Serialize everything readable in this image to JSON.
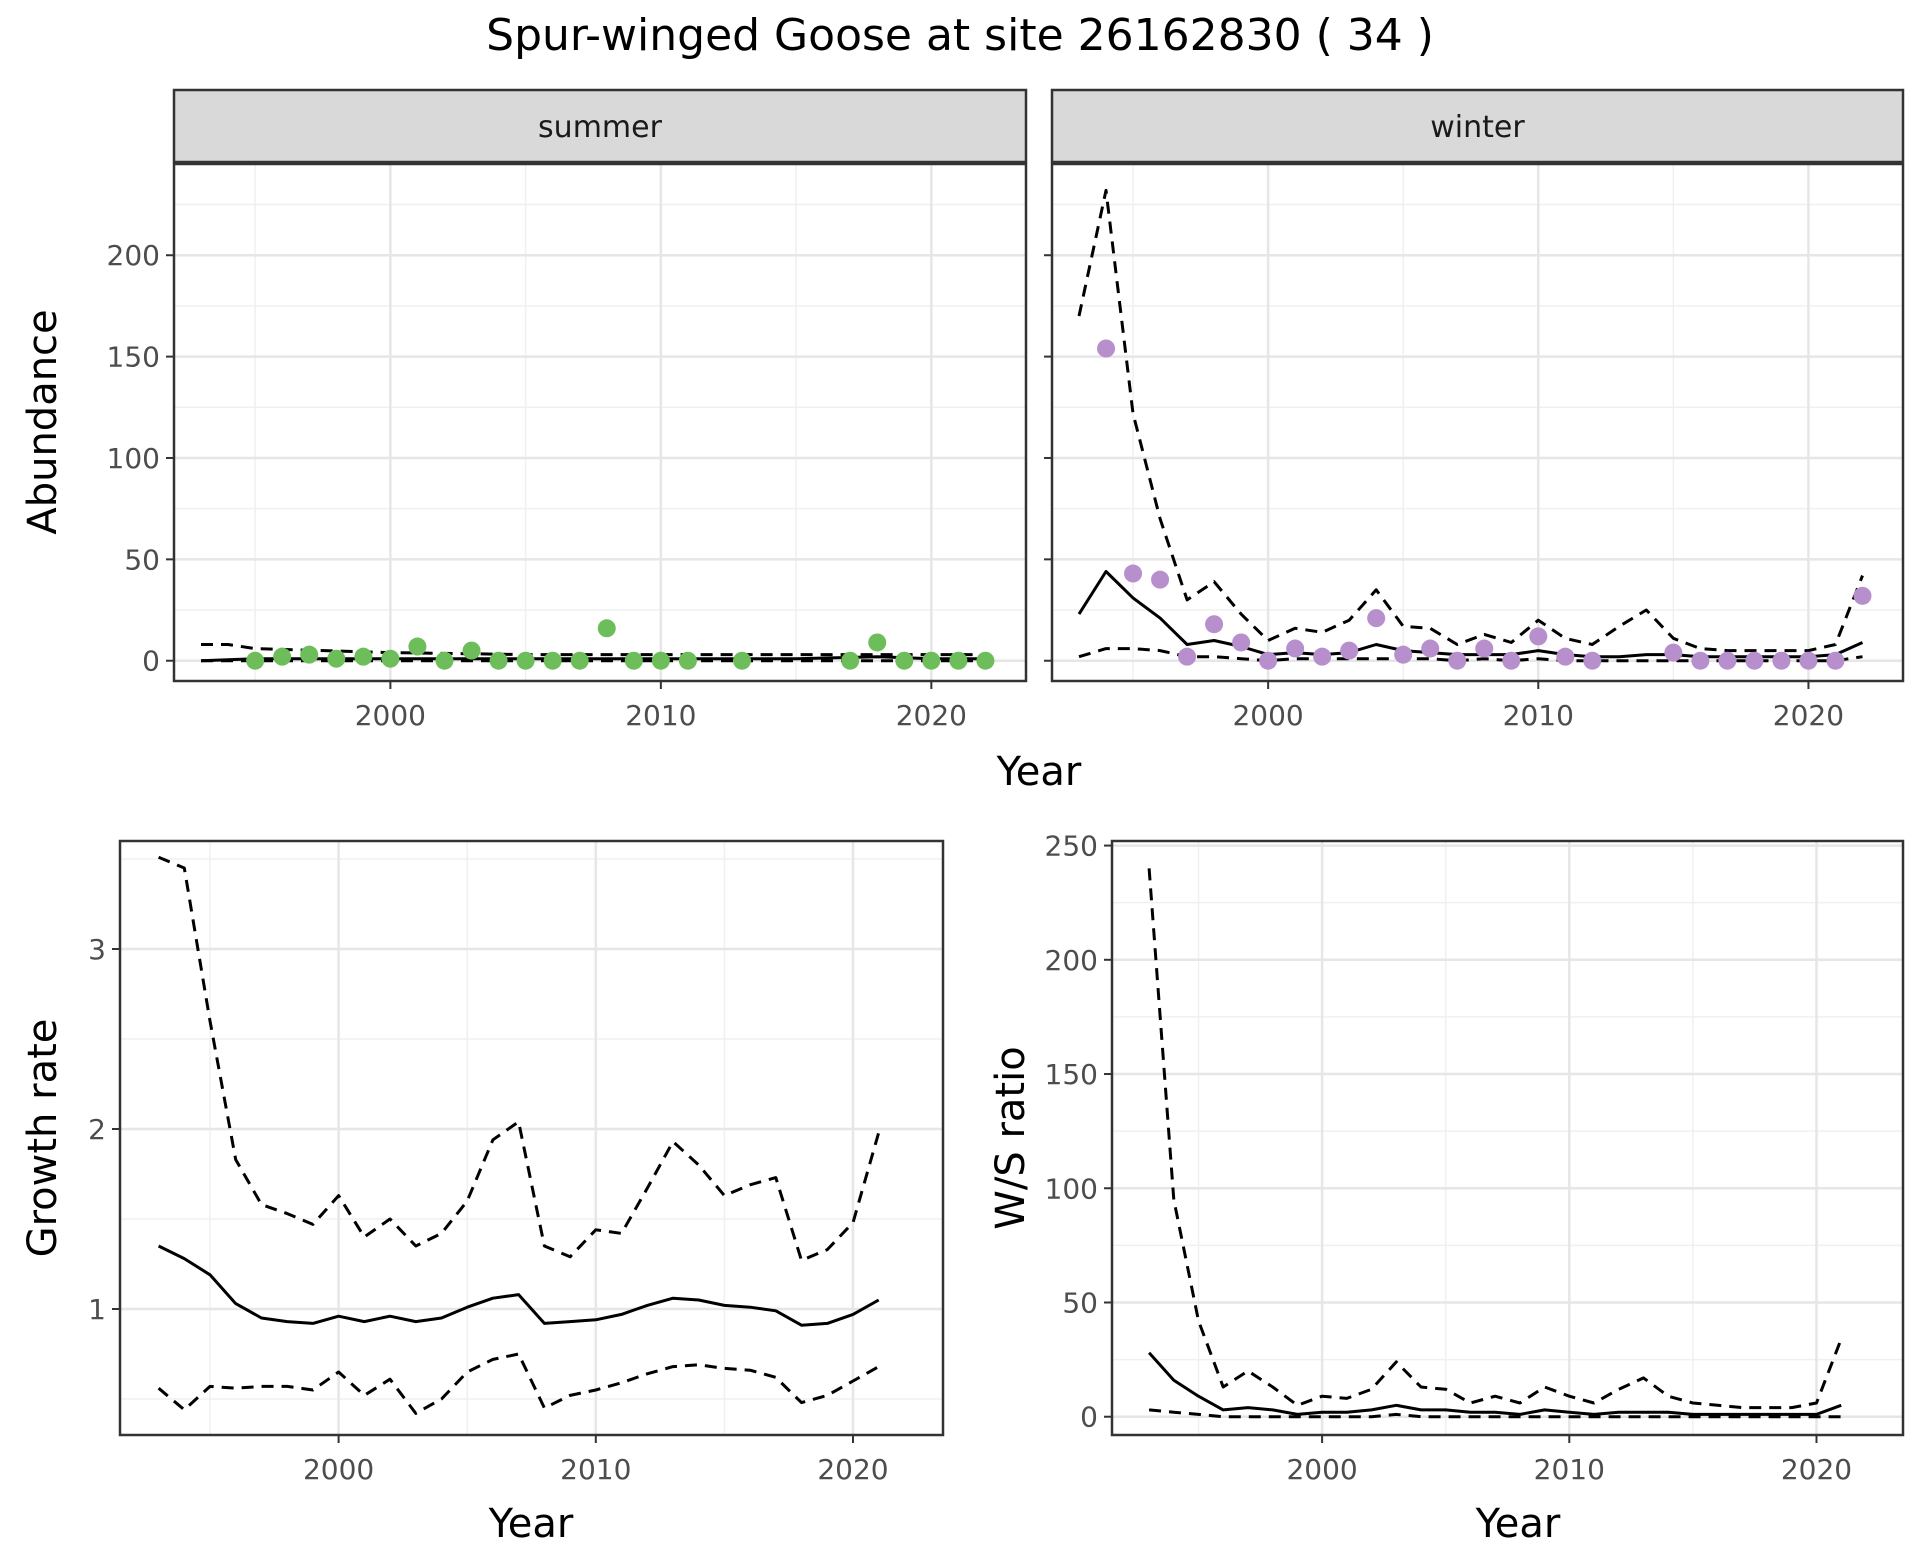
{
  "title": "Spur-winged Goose at site 26162830 ( 34 )",
  "colors": {
    "summer": "#6ebd5b",
    "winter": "#b68fcc",
    "line": "#000000",
    "strip": "#d9d9d9"
  },
  "chart_data": [
    {
      "type": "line",
      "facet": "summer",
      "xlabel": "Year",
      "ylabel": "Abundance",
      "xlim": [
        1992,
        2023.5
      ],
      "ylim": [
        -10,
        245
      ],
      "xticks": [
        2000,
        2010,
        2020
      ],
      "yticks": [
        0,
        50,
        100,
        150,
        200
      ],
      "grid": true,
      "points": {
        "color": "summer",
        "x": [
          1995,
          1996,
          1997,
          1998,
          1999,
          2000,
          2001,
          2002,
          2003,
          2004,
          2005,
          2006,
          2007,
          2008,
          2009,
          2010,
          2011,
          2013,
          2017,
          2018,
          2019,
          2020,
          2021,
          2022
        ],
        "y": [
          0,
          2,
          3,
          1,
          2,
          1,
          7,
          0,
          5,
          0,
          0,
          0,
          0,
          16,
          0,
          0,
          0,
          0,
          0,
          9,
          0,
          0,
          0,
          0
        ]
      },
      "series": [
        {
          "style": "solid",
          "x": [
            1993,
            1995,
            2000,
            2005,
            2010,
            2015,
            2018,
            2020,
            2022
          ],
          "y": [
            0,
            1,
            1,
            1,
            1,
            1,
            2,
            1,
            1
          ]
        },
        {
          "style": "dashed",
          "x": [
            1993,
            1994,
            1995,
            2000,
            2005,
            2008,
            2010,
            2015,
            2018,
            2020,
            2022
          ],
          "y": [
            8,
            8,
            6,
            4,
            3,
            3,
            3,
            3,
            3,
            3,
            3
          ]
        },
        {
          "style": "dashed",
          "x": [
            1993,
            1995,
            2000,
            2005,
            2010,
            2015,
            2020,
            2022
          ],
          "y": [
            0,
            0,
            0,
            0,
            0,
            0,
            0,
            0
          ]
        }
      ]
    },
    {
      "type": "line",
      "facet": "winter",
      "xlabel": "Year",
      "ylabel": "Abundance",
      "xlim": [
        1992,
        2023.5
      ],
      "ylim": [
        -10,
        245
      ],
      "xticks": [
        2000,
        2010,
        2020
      ],
      "yticks": [
        0,
        50,
        100,
        150,
        200
      ],
      "grid": true,
      "points": {
        "color": "winter",
        "x": [
          1994,
          1995,
          1996,
          1997,
          1998,
          1999,
          2000,
          2001,
          2002,
          2003,
          2004,
          2005,
          2006,
          2007,
          2008,
          2009,
          2010,
          2011,
          2012,
          2015,
          2016,
          2017,
          2018,
          2019,
          2020,
          2021,
          2022
        ],
        "y": [
          154,
          43,
          40,
          2,
          18,
          9,
          0,
          6,
          2,
          5,
          21,
          3,
          6,
          0,
          6,
          0,
          12,
          2,
          0,
          4,
          0,
          0,
          0,
          0,
          0,
          0,
          32
        ]
      },
      "series": [
        {
          "style": "solid",
          "x": [
            1993,
            1994,
            1995,
            1996,
            1997,
            1998,
            1999,
            2000,
            2001,
            2002,
            2003,
            2004,
            2005,
            2006,
            2007,
            2008,
            2009,
            2010,
            2011,
            2012,
            2013,
            2014,
            2015,
            2016,
            2017,
            2018,
            2019,
            2020,
            2021,
            2022
          ],
          "y": [
            23,
            44,
            31,
            21,
            8,
            10,
            7,
            3,
            4,
            3,
            4,
            8,
            5,
            4,
            3,
            3,
            3,
            5,
            3,
            2,
            2,
            3,
            3,
            2,
            2,
            2,
            2,
            2,
            3,
            9
          ]
        },
        {
          "style": "dashed",
          "x": [
            1993,
            1994,
            1995,
            1996,
            1997,
            1998,
            1999,
            2000,
            2001,
            2002,
            2003,
            2004,
            2005,
            2006,
            2007,
            2008,
            2009,
            2010,
            2011,
            2012,
            2013,
            2014,
            2015,
            2016,
            2017,
            2018,
            2019,
            2020,
            2021,
            2022
          ],
          "y": [
            170,
            232,
            122,
            70,
            30,
            39,
            23,
            10,
            16,
            14,
            20,
            35,
            17,
            16,
            8,
            13,
            9,
            20,
            11,
            8,
            17,
            25,
            11,
            6,
            5,
            5,
            5,
            5,
            8,
            42
          ]
        },
        {
          "style": "dashed",
          "x": [
            1993,
            1994,
            1995,
            1996,
            1997,
            1998,
            1999,
            2000,
            2001,
            2002,
            2003,
            2004,
            2005,
            2006,
            2007,
            2008,
            2009,
            2010,
            2011,
            2012,
            2013,
            2014,
            2015,
            2016,
            2017,
            2018,
            2019,
            2020,
            2021,
            2022
          ],
          "y": [
            2,
            6,
            6,
            5,
            2,
            2,
            1,
            0,
            1,
            1,
            1,
            1,
            1,
            1,
            0,
            1,
            0,
            1,
            0,
            0,
            0,
            0,
            0,
            0,
            0,
            0,
            0,
            0,
            0,
            2
          ]
        }
      ]
    },
    {
      "type": "line",
      "xlabel": "Year",
      "ylabel": "Growth rate",
      "xlim": [
        1991.5,
        2023.5
      ],
      "ylim": [
        0.3,
        3.6
      ],
      "xticks": [
        2000,
        2010,
        2020
      ],
      "yticks": [
        1,
        2,
        3
      ],
      "grid": true,
      "series": [
        {
          "style": "solid",
          "x": [
            1993,
            1994,
            1995,
            1996,
            1997,
            1998,
            1999,
            2000,
            2001,
            2002,
            2003,
            2004,
            2005,
            2006,
            2007,
            2008,
            2009,
            2010,
            2011,
            2012,
            2013,
            2014,
            2015,
            2016,
            2017,
            2018,
            2019,
            2020,
            2021
          ],
          "y": [
            1.35,
            1.28,
            1.19,
            1.03,
            0.95,
            0.93,
            0.92,
            0.96,
            0.93,
            0.96,
            0.93,
            0.95,
            1.01,
            1.06,
            1.08,
            0.92,
            0.93,
            0.94,
            0.97,
            1.02,
            1.06,
            1.05,
            1.02,
            1.01,
            0.99,
            0.91,
            0.92,
            0.97,
            1.05
          ]
        },
        {
          "style": "dashed",
          "x": [
            1993,
            1994,
            1995,
            1996,
            1997,
            1998,
            1999,
            2000,
            2001,
            2002,
            2003,
            2004,
            2005,
            2006,
            2007,
            2008,
            2009,
            2010,
            2011,
            2012,
            2013,
            2014,
            2015,
            2016,
            2017,
            2018,
            2019,
            2020,
            2021
          ],
          "y": [
            3.51,
            3.45,
            2.6,
            1.83,
            1.58,
            1.53,
            1.47,
            1.63,
            1.4,
            1.5,
            1.35,
            1.42,
            1.6,
            1.94,
            2.04,
            1.35,
            1.29,
            1.44,
            1.42,
            1.67,
            1.93,
            1.8,
            1.63,
            1.69,
            1.73,
            1.27,
            1.33,
            1.48,
            1.98
          ]
        },
        {
          "style": "dashed",
          "x": [
            1993,
            1994,
            1995,
            1996,
            1997,
            1998,
            1999,
            2000,
            2001,
            2002,
            2003,
            2004,
            2005,
            2006,
            2007,
            2008,
            2009,
            2010,
            2011,
            2012,
            2013,
            2014,
            2015,
            2016,
            2017,
            2018,
            2019,
            2020,
            2021
          ],
          "y": [
            0.56,
            0.44,
            0.57,
            0.56,
            0.57,
            0.57,
            0.55,
            0.65,
            0.52,
            0.61,
            0.42,
            0.5,
            0.65,
            0.72,
            0.75,
            0.45,
            0.52,
            0.55,
            0.59,
            0.64,
            0.68,
            0.69,
            0.67,
            0.66,
            0.62,
            0.48,
            0.52,
            0.6,
            0.68
          ]
        }
      ]
    },
    {
      "type": "line",
      "xlabel": "Year",
      "ylabel": "W/S ratio",
      "xlim": [
        1991.5,
        2023.5
      ],
      "ylim": [
        -8,
        252
      ],
      "xticks": [
        2000,
        2010,
        2020
      ],
      "yticks": [
        0,
        50,
        100,
        150,
        200,
        250
      ],
      "grid": true,
      "series": [
        {
          "style": "solid",
          "x": [
            1993,
            1994,
            1995,
            1996,
            1997,
            1998,
            1999,
            2000,
            2001,
            2002,
            2003,
            2004,
            2005,
            2006,
            2007,
            2008,
            2009,
            2010,
            2011,
            2012,
            2013,
            2014,
            2015,
            2016,
            2017,
            2018,
            2019,
            2020,
            2021
          ],
          "y": [
            28,
            16,
            9,
            3,
            4,
            3,
            1,
            2,
            2,
            3,
            5,
            3,
            3,
            2,
            2,
            1,
            3,
            2,
            1,
            2,
            2,
            2,
            1,
            1,
            1,
            1,
            1,
            1,
            5
          ]
        },
        {
          "style": "dashed",
          "x": [
            1993,
            1994,
            1995,
            1996,
            1997,
            1998,
            1999,
            2000,
            2001,
            2002,
            2003,
            2004,
            2005,
            2006,
            2007,
            2008,
            2009,
            2010,
            2011,
            2012,
            2013,
            2014,
            2015,
            2016,
            2017,
            2018,
            2019,
            2020,
            2021
          ],
          "y": [
            240,
            95,
            42,
            13,
            20,
            13,
            5,
            9,
            8,
            12,
            24,
            13,
            12,
            6,
            9,
            6,
            13,
            9,
            6,
            12,
            17,
            9,
            6,
            5,
            4,
            4,
            4,
            6,
            34
          ]
        },
        {
          "style": "dashed",
          "x": [
            1993,
            1994,
            1995,
            1996,
            1997,
            1998,
            1999,
            2000,
            2001,
            2002,
            2003,
            2004,
            2005,
            2006,
            2007,
            2008,
            2009,
            2010,
            2011,
            2012,
            2013,
            2014,
            2015,
            2016,
            2017,
            2018,
            2019,
            2020,
            2021
          ],
          "y": [
            3,
            2,
            1,
            0,
            0,
            0,
            0,
            0,
            0,
            0,
            1,
            0,
            0,
            0,
            0,
            0,
            0,
            0,
            0,
            0,
            0,
            0,
            0,
            0,
            0,
            0,
            0,
            0,
            0
          ]
        }
      ]
    }
  ]
}
